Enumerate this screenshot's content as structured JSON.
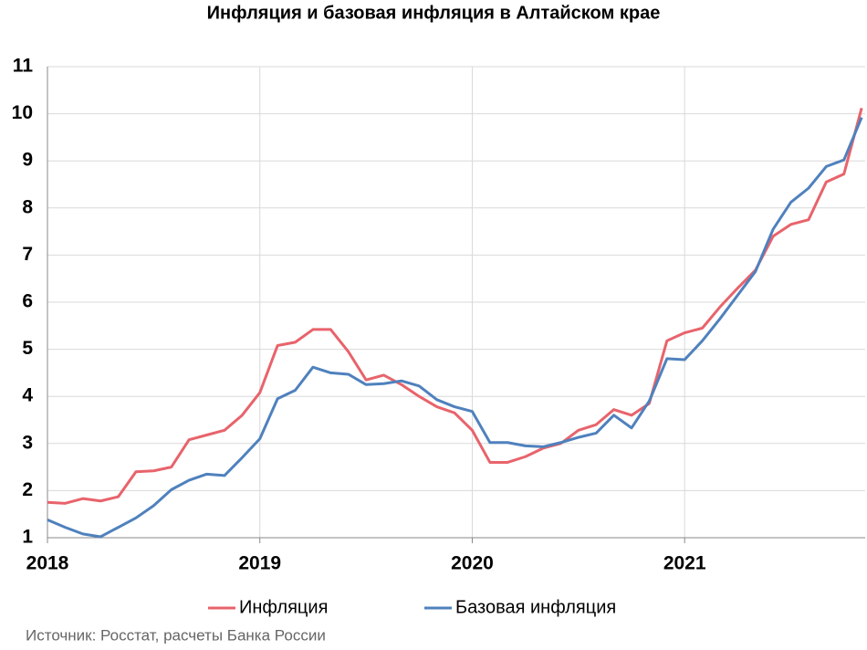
{
  "chart_data": {
    "type": "line",
    "title": "Инфляция и базовая инфляция в Алтайском крае",
    "source": "Источник: Росстат, расчеты Банка России",
    "x": [
      0,
      1,
      2,
      3,
      4,
      5,
      6,
      7,
      8,
      9,
      10,
      11,
      12,
      13,
      14,
      15,
      16,
      17,
      18,
      19,
      20,
      21,
      22,
      23,
      24,
      25,
      26,
      27,
      28,
      29,
      30,
      31,
      32,
      33,
      34,
      35,
      36,
      37,
      38,
      39,
      40,
      41,
      42,
      43,
      44,
      45,
      46
    ],
    "series": [
      {
        "name": "Инфляция",
        "color": "#e8636b",
        "values": [
          1.75,
          1.73,
          1.83,
          1.78,
          1.87,
          2.4,
          2.42,
          2.5,
          3.08,
          3.18,
          3.28,
          3.6,
          4.08,
          5.08,
          5.15,
          5.42,
          5.42,
          4.95,
          4.35,
          4.45,
          4.25,
          4.0,
          3.78,
          3.65,
          3.28,
          2.6,
          2.6,
          2.72,
          2.9,
          3.0,
          3.28,
          3.4,
          3.72,
          3.6,
          3.85,
          5.18,
          5.35,
          5.45,
          5.9,
          6.3,
          6.68,
          7.4,
          7.65,
          7.75,
          8.55,
          8.72,
          10.12
        ]
      },
      {
        "name": "Базовая инфляция",
        "color": "#4f81bd",
        "values": [
          1.38,
          1.22,
          1.08,
          1.02,
          1.22,
          1.42,
          1.68,
          2.02,
          2.22,
          2.35,
          2.32,
          2.7,
          3.1,
          3.95,
          4.13,
          4.62,
          4.5,
          4.47,
          4.25,
          4.27,
          4.33,
          4.22,
          3.93,
          3.78,
          3.68,
          3.02,
          3.02,
          2.95,
          2.93,
          3.02,
          3.13,
          3.22,
          3.6,
          3.33,
          3.9,
          4.8,
          4.78,
          5.18,
          5.65,
          6.15,
          6.65,
          7.55,
          8.12,
          8.42,
          8.88,
          9.02,
          9.92
        ]
      }
    ],
    "xlim": [
      0,
      46.2
    ],
    "xticks": [
      {
        "value": 0,
        "label": "2018"
      },
      {
        "value": 12,
        "label": "2019"
      },
      {
        "value": 24,
        "label": "2020"
      },
      {
        "value": 36,
        "label": "2021"
      }
    ],
    "ylim": [
      1,
      11
    ],
    "yticks": [
      1,
      2,
      3,
      4,
      5,
      6,
      7,
      8,
      9,
      10,
      11
    ],
    "grid": true,
    "legend": "bottom"
  }
}
